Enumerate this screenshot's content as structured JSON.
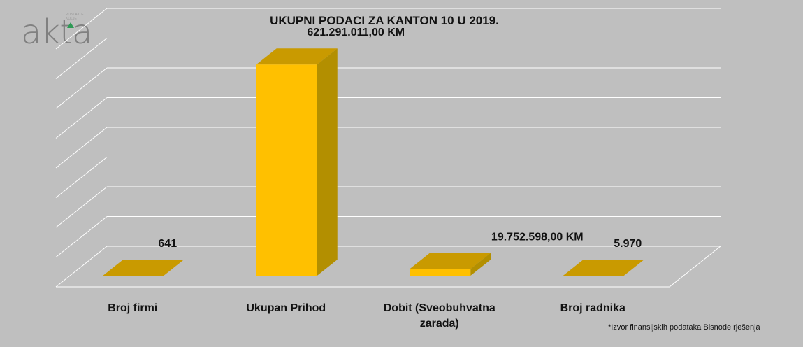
{
  "logo": {
    "text": "akta",
    "tagline_1": "POSLAJTE",
    "tagline_2": "KOLJE",
    "logo_color": "#808080",
    "accent_color": "#2e9a55"
  },
  "source_note": "*Izvor finansijskih  podataka Bisnode  rješenja",
  "colors": {
    "background": "#bfbfbf",
    "bar_front": "#ffc000",
    "bar_side": "#b38f00",
    "bar_top": "#c99a00",
    "grid": "#ffffff"
  },
  "chart_data": {
    "type": "bar",
    "title": "UKUPNI PODACI ZA KANTON 10 U 2019.",
    "categories": [
      "Broj firmi",
      "Ukupan Prihod",
      "Dobit (Sveobuhvatna zarada)",
      "Broj radnika"
    ],
    "category_lines": [
      [
        "Broj firmi"
      ],
      [
        "Ukupan Prihod"
      ],
      [
        "Dobit (Sveobuhvatna",
        "zarada)"
      ],
      [
        "Broj radnika"
      ]
    ],
    "values": [
      641,
      621291011.0,
      19752598.0,
      5970
    ],
    "data_labels": [
      "641",
      "621.291.011,00  KM",
      "19.752.598,00  KM",
      "5.970"
    ],
    "ylim": [
      0,
      700000000
    ],
    "gridlines": 8,
    "grid": true,
    "legend": "none",
    "style": "3d-column"
  }
}
